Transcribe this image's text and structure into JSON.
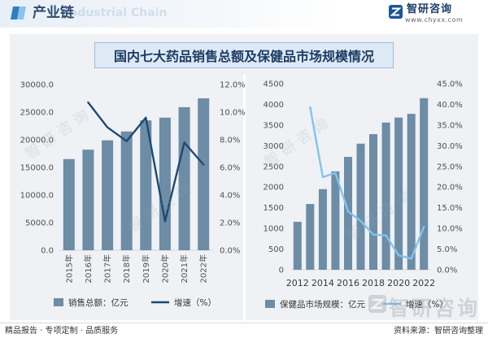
{
  "header": {
    "title": "产业链",
    "watermark": "Industrial Chain",
    "icon": "chain-icon"
  },
  "brand": {
    "name": "智研咨询",
    "url": "www.chyxx.com",
    "icon": "zhiyan-logo-icon"
  },
  "title": "国内七大药品销售总额及保健品市场规模情况",
  "colors": {
    "bar": "#6d8ca6",
    "line_left": "#1d4a72",
    "line_right": "#80c5eb",
    "title_bg": "#dde9f5",
    "title_border": "#9dbcdc",
    "panel_bg": "#eff1f4"
  },
  "chart_data": [
    {
      "type": "bar",
      "categories": [
        "2015年",
        "2016年",
        "2017年",
        "2018年",
        "2019年",
        "2020年",
        "2021年",
        "2022年"
      ],
      "series": [
        {
          "name": "销售总额：亿元",
          "type": "bar",
          "axis": "left",
          "color": "#6d8ca6",
          "values": [
            16500,
            18200,
            19900,
            21500,
            23500,
            24000,
            25900,
            27500
          ]
        },
        {
          "name": "增速（%）",
          "type": "line",
          "axis": "right",
          "color": "#1d4a72",
          "values": [
            null,
            10.7,
            8.9,
            7.9,
            9.6,
            2.1,
            7.8,
            6.2
          ]
        }
      ],
      "ylim": [
        0,
        30000
      ],
      "yticks": [
        "0.0",
        "5000.0",
        "10000.0",
        "15000.0",
        "20000.0",
        "25000.0",
        "30000.0"
      ],
      "y2lim": [
        0,
        12
      ],
      "y2ticks": [
        "0.0%",
        "2.0%",
        "4.0%",
        "6.0%",
        "8.0%",
        "10.0%",
        "12.0%"
      ],
      "grid": false,
      "legend": "bottom"
    },
    {
      "type": "bar",
      "x": [
        2012,
        2013,
        2014,
        2015,
        2016,
        2017,
        2018,
        2019,
        2020,
        2021,
        2022
      ],
      "xticks": [
        2012,
        2014,
        2016,
        2018,
        2020,
        2022
      ],
      "series": [
        {
          "name": "保健品市场规模：亿元",
          "type": "bar",
          "axis": "left",
          "color": "#6d8ca6",
          "values": [
            1160,
            1590,
            1950,
            2380,
            2730,
            3050,
            3280,
            3560,
            3680,
            3770,
            4150
          ]
        },
        {
          "name": "增速（%）",
          "type": "line",
          "axis": "right",
          "color": "#80c5eb",
          "values": [
            null,
            39.3,
            22.4,
            23.4,
            14.1,
            11.8,
            8.5,
            8.3,
            3.5,
            2.7,
            10.4
          ]
        }
      ],
      "ylim": [
        0,
        4500
      ],
      "yticks": [
        "0",
        "500",
        "1000",
        "1500",
        "2000",
        "2500",
        "3000",
        "3500",
        "4000",
        "4500"
      ],
      "y2lim": [
        0,
        45
      ],
      "y2ticks": [
        "0.0%",
        "5.0%",
        "10.0%",
        "15.0%",
        "20.0%",
        "25.0%",
        "30.0%",
        "35.0%",
        "40.0%",
        "45.0%"
      ],
      "grid": false,
      "legend": "bottom"
    }
  ],
  "watermark": {
    "text": "智研咨询"
  },
  "footer": {
    "left": "精品报告 · 专项定制 · 品质服务",
    "source": "资料来源：智研咨询整理"
  }
}
